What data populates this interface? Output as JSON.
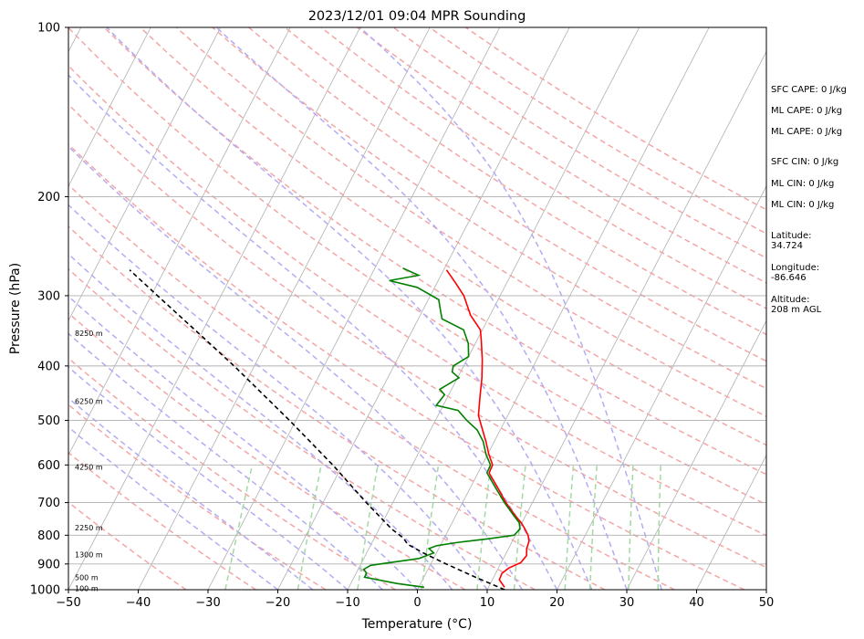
{
  "chart_data": {
    "type": "line",
    "title": "2023/12/01 09:04 MPR Sounding",
    "xlabel": "Temperature (°C)",
    "ylabel": "Pressure (hPa)",
    "xlim": [
      -50,
      50
    ],
    "ylim_hpa": [
      1000,
      100
    ],
    "y_scale": "log",
    "x_ticks": [
      -50,
      -40,
      -30,
      -20,
      -10,
      0,
      10,
      20,
      30,
      40,
      50
    ],
    "x_tick_labels": [
      "−50",
      "−40",
      "−30",
      "−20",
      "−10",
      "0",
      "10",
      "20",
      "30",
      "40",
      "50"
    ],
    "y_ticks": [
      100,
      200,
      300,
      400,
      500,
      600,
      700,
      800,
      900,
      1000
    ],
    "y_tick_labels": [
      "100",
      "200",
      "300",
      "400",
      "500",
      "600",
      "700",
      "800",
      "900",
      "1000"
    ],
    "grid": true,
    "skew_deg_per_decade": 41.8,
    "series": [
      {
        "role": "temperature",
        "color": "#ff0000",
        "points": [
          [
            990,
            12.3
          ],
          [
            960,
            11.0
          ],
          [
            935,
            10.9
          ],
          [
            915,
            11.5
          ],
          [
            895,
            12.8
          ],
          [
            870,
            13.1
          ],
          [
            845,
            12.6
          ],
          [
            820,
            12.4
          ],
          [
            800,
            11.8
          ],
          [
            780,
            10.9
          ],
          [
            760,
            9.9
          ],
          [
            740,
            8.6
          ],
          [
            700,
            6.2
          ],
          [
            660,
            4.0
          ],
          [
            620,
            1.6
          ],
          [
            600,
            1.5
          ],
          [
            575,
            0.2
          ],
          [
            545,
            -1.2
          ],
          [
            515,
            -2.8
          ],
          [
            490,
            -4.2
          ],
          [
            450,
            -5.5
          ],
          [
            420,
            -6.5
          ],
          [
            390,
            -7.8
          ],
          [
            360,
            -9.4
          ],
          [
            345,
            -10.3
          ],
          [
            325,
            -12.8
          ],
          [
            300,
            -15.2
          ],
          [
            285,
            -17.3
          ],
          [
            270,
            -19.6
          ]
        ]
      },
      {
        "role": "dewpoint",
        "color": "#008000",
        "points": [
          [
            990,
            0.8
          ],
          [
            975,
            -3.4
          ],
          [
            950,
            -8.5
          ],
          [
            935,
            -8.5
          ],
          [
            920,
            -9.2
          ],
          [
            905,
            -8.5
          ],
          [
            880,
            -2.1
          ],
          [
            860,
            -0.4
          ],
          [
            845,
            -1.4
          ],
          [
            835,
            -0.5
          ],
          [
            825,
            2.0
          ],
          [
            812,
            6.3
          ],
          [
            800,
            9.8
          ],
          [
            780,
            10.2
          ],
          [
            760,
            9.6
          ],
          [
            740,
            8.4
          ],
          [
            700,
            6.0
          ],
          [
            660,
            3.7
          ],
          [
            620,
            1.3
          ],
          [
            600,
            1.2
          ],
          [
            575,
            -0.2
          ],
          [
            545,
            -1.6
          ],
          [
            520,
            -3.3
          ],
          [
            500,
            -5.5
          ],
          [
            480,
            -7.5
          ],
          [
            470,
            -11.0
          ],
          [
            450,
            -10.6
          ],
          [
            440,
            -11.7
          ],
          [
            420,
            -9.8
          ],
          [
            410,
            -11.2
          ],
          [
            400,
            -11.5
          ],
          [
            385,
            -10.0
          ],
          [
            365,
            -11.0
          ],
          [
            345,
            -12.7
          ],
          [
            330,
            -16.6
          ],
          [
            318,
            -17.5
          ],
          [
            305,
            -18.5
          ],
          [
            290,
            -22.5
          ],
          [
            282,
            -27.0
          ],
          [
            276,
            -23.2
          ],
          [
            268,
            -26.0
          ]
        ]
      },
      {
        "role": "parcel",
        "color": "#000000",
        "dashed": true,
        "points": [
          [
            1000,
            12.5
          ],
          [
            950,
            7.4
          ],
          [
            900,
            2.2
          ],
          [
            860,
            -1.9
          ],
          [
            830,
            -4.8
          ],
          [
            810,
            -5.8
          ],
          [
            780,
            -8.2
          ],
          [
            700,
            -13.8
          ],
          [
            600,
            -21.4
          ],
          [
            500,
            -30.9
          ],
          [
            400,
            -42.9
          ],
          [
            350,
            -50.4
          ],
          [
            300,
            -59.1
          ],
          [
            270,
            -65.0
          ]
        ]
      }
    ],
    "height_labels": [
      {
        "text": "100 m",
        "p": 994
      },
      {
        "text": "500 m",
        "p": 950
      },
      {
        "text": "1300 m",
        "p": 866
      },
      {
        "text": "2250 m",
        "p": 775
      },
      {
        "text": "4250 m",
        "p": 605
      },
      {
        "text": "6250 m",
        "p": 462
      },
      {
        "text": "8250 m",
        "p": 350
      }
    ],
    "reference_lines": {
      "isotherms_deg": [
        -180,
        -170,
        -160,
        -150,
        -140,
        -130,
        -120,
        -110,
        -100,
        -90,
        -80,
        -70,
        -60,
        -50,
        -40,
        -30,
        -20,
        -10,
        0,
        10,
        20,
        30,
        40,
        50
      ],
      "dry_adiabats_K": [
        240,
        250,
        260,
        270,
        280,
        290,
        300,
        310,
        320,
        330,
        340,
        350,
        360,
        370,
        380,
        390,
        400,
        410,
        420,
        430,
        440,
        450,
        460
      ],
      "moist_adiabats_C": [
        -20,
        -15,
        -10,
        -5,
        0,
        5,
        10,
        15,
        20,
        25,
        30,
        35
      ],
      "mixing_ratios_gkg": [
        0.4,
        1,
        2,
        4,
        7,
        10,
        16,
        20,
        28,
        36
      ],
      "colors": {
        "isotherm": "#b0b0b0",
        "dry": "#f4a6a6",
        "moist": "#b3acf4",
        "mixing": "#a3d9a3",
        "grid": "#b0b0b0"
      }
    }
  },
  "info_panel": [
    {
      "key": "sfc_cape",
      "text": "SFC CAPE: 0 J/kg"
    },
    {
      "key": "ml_cape_1",
      "text": "ML CAPE: 0 J/kg"
    },
    {
      "key": "ml_cape_2",
      "text": "ML CAPE: 0 J/kg"
    },
    {
      "key": "sfc_cin",
      "text": "SFC CIN: 0 J/kg"
    },
    {
      "key": "ml_cin_1",
      "text": "ML CIN: 0 J/kg"
    },
    {
      "key": "ml_cin_2",
      "text": "ML CIN: 0 J/kg"
    },
    {
      "key": "latitude",
      "text": "Latitude:\n34.724"
    },
    {
      "key": "longitude",
      "text": "Longitude:\n-86.646"
    },
    {
      "key": "altitude",
      "text": "Altitude:\n208 m AGL"
    }
  ]
}
